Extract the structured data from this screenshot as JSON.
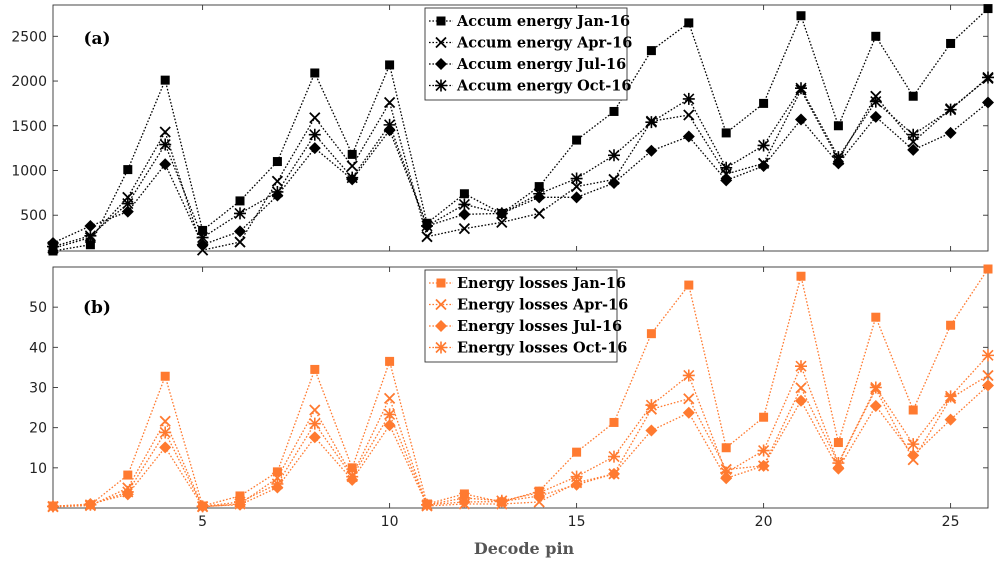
{
  "chart_data": [
    {
      "type": "line",
      "panel_label": "(a)",
      "x": [
        1,
        2,
        3,
        4,
        5,
        6,
        7,
        8,
        9,
        10,
        11,
        12,
        13,
        14,
        15,
        16,
        17,
        18,
        19,
        20,
        21,
        22,
        23,
        24,
        25,
        26
      ],
      "xlim": [
        1,
        26
      ],
      "ylim": [
        100,
        2850
      ],
      "yticks": [
        500,
        1000,
        1500,
        2000,
        2500
      ],
      "color": "#000000",
      "legend_position": "top-center",
      "series": [
        {
          "name": "Accum energy Jan-16",
          "marker": "square",
          "values": [
            100,
            170,
            1010,
            2010,
            330,
            660,
            1100,
            2090,
            1180,
            2180,
            410,
            740,
            520,
            820,
            1340,
            1660,
            2340,
            2650,
            1420,
            1750,
            2730,
            1500,
            2500,
            1830,
            2420,
            2810
          ]
        },
        {
          "name": "Accum energy Apr-16",
          "marker": "x",
          "values": [
            130,
            250,
            700,
            1430,
            110,
            200,
            880,
            1590,
            1050,
            1760,
            260,
            350,
            420,
            520,
            820,
            900,
            1550,
            1620,
            960,
            1080,
            1900,
            1120,
            1830,
            1320,
            1690,
            2030
          ]
        },
        {
          "name": "Accum energy Jul-16",
          "marker": "diamond",
          "values": [
            190,
            380,
            540,
            1070,
            170,
            320,
            720,
            1250,
            900,
            1450,
            380,
            510,
            520,
            700,
            700,
            860,
            1220,
            1380,
            890,
            1050,
            1570,
            1080,
            1600,
            1230,
            1420,
            1760
          ]
        },
        {
          "name": "Accum energy Oct-16",
          "marker": "asterisk",
          "values": [
            150,
            270,
            630,
            1290,
            250,
            520,
            760,
            1400,
            920,
            1510,
            380,
            620,
            520,
            740,
            910,
            1170,
            1540,
            1800,
            1030,
            1280,
            1920,
            1150,
            1770,
            1400,
            1680,
            2040
          ]
        }
      ]
    },
    {
      "type": "line",
      "panel_label": "(b)",
      "x": [
        1,
        2,
        3,
        4,
        5,
        6,
        7,
        8,
        9,
        10,
        11,
        12,
        13,
        14,
        15,
        16,
        17,
        18,
        19,
        20,
        21,
        22,
        23,
        24,
        25,
        26
      ],
      "xlim": [
        1,
        26
      ],
      "xticks": [
        5,
        10,
        15,
        20,
        25
      ],
      "xlabel": "Decode pin",
      "ylim": [
        0,
        60
      ],
      "yticks": [
        10,
        20,
        30,
        40,
        50
      ],
      "color": "#ff7a30",
      "legend_position": "top-center",
      "series": [
        {
          "name": "Energy losses Jan-16",
          "marker": "square",
          "values": [
            0.5,
            0.8,
            8.2,
            32.8,
            0.5,
            3.0,
            9.0,
            34.5,
            10.0,
            36.5,
            1.0,
            3.5,
            1.5,
            4.2,
            13.9,
            21.3,
            43.4,
            55.5,
            15.0,
            22.6,
            57.7,
            16.3,
            47.5,
            24.4,
            45.5,
            59.5
          ]
        },
        {
          "name": "Energy losses Apr-16",
          "marker": "x",
          "values": [
            0.3,
            0.6,
            5.0,
            21.6,
            0.3,
            1.0,
            7.5,
            24.4,
            8.0,
            27.3,
            0.5,
            1.0,
            1.0,
            1.5,
            6.3,
            8.5,
            24.6,
            27.2,
            9.6,
            10.5,
            29.9,
            11.1,
            29.6,
            12.0,
            27.3,
            33.0
          ]
        },
        {
          "name": "Energy losses Jul-16",
          "marker": "diamond",
          "values": [
            0.4,
            1.0,
            3.4,
            15.1,
            0.4,
            0.8,
            5.1,
            17.6,
            7.0,
            20.6,
            0.8,
            1.5,
            1.6,
            3.0,
            5.8,
            8.5,
            19.3,
            23.7,
            7.4,
            10.5,
            26.7,
            9.8,
            25.4,
            13.1,
            22.0,
            30.5
          ]
        },
        {
          "name": "Energy losses Oct-16",
          "marker": "asterisk",
          "values": [
            0.4,
            0.8,
            4.0,
            18.8,
            0.4,
            1.5,
            6.0,
            21.0,
            7.8,
            23.3,
            0.8,
            2.5,
            1.8,
            3.8,
            7.8,
            12.8,
            25.6,
            33.0,
            8.8,
            14.3,
            35.3,
            11.2,
            30.0,
            15.9,
            27.8,
            38.0
          ]
        }
      ]
    }
  ]
}
